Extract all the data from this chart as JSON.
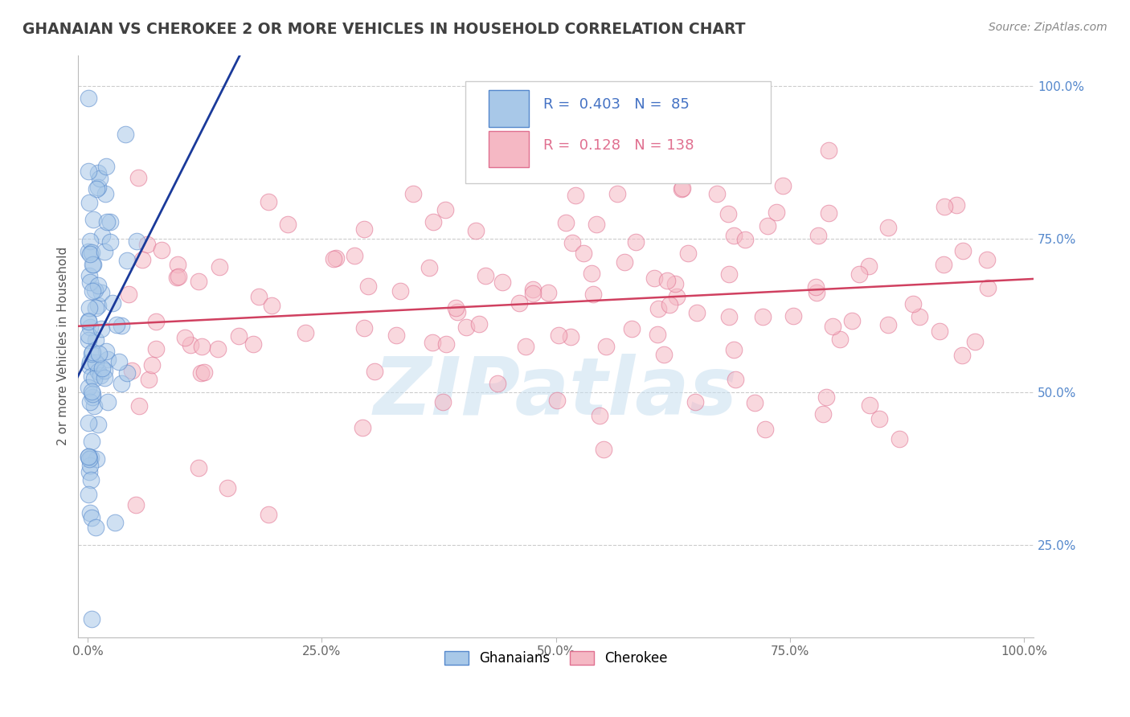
{
  "title": "GHANAIAN VS CHEROKEE 2 OR MORE VEHICLES IN HOUSEHOLD CORRELATION CHART",
  "source_text": "Source: ZipAtlas.com",
  "ylabel": "2 or more Vehicles in Household",
  "xlim": [
    -0.01,
    1.01
  ],
  "ylim": [
    0.1,
    1.05
  ],
  "xticks": [
    0.0,
    0.25,
    0.5,
    0.75,
    1.0
  ],
  "xtick_labels": [
    "0.0%",
    "25.0%",
    "50.0%",
    "75.0%",
    "100.0%"
  ],
  "yticks": [
    0.25,
    0.5,
    0.75,
    1.0
  ],
  "ytick_labels": [
    "25.0%",
    "50.0%",
    "75.0%",
    "100.0%"
  ],
  "blue_fill": "#a8c8e8",
  "blue_edge": "#5588cc",
  "pink_fill": "#f5b8c4",
  "pink_edge": "#e07090",
  "trend_blue": "#1a3a9a",
  "trend_pink": "#d04060",
  "watermark": "ZIPatlas",
  "watermark_color": "#c8dff0",
  "background_color": "#ffffff",
  "grid_color": "#cccccc",
  "title_color": "#404040",
  "source_color": "#888888",
  "ytick_color": "#5588cc",
  "legend_R_color": "#4472c4",
  "legend_N_color": "#4472c4"
}
